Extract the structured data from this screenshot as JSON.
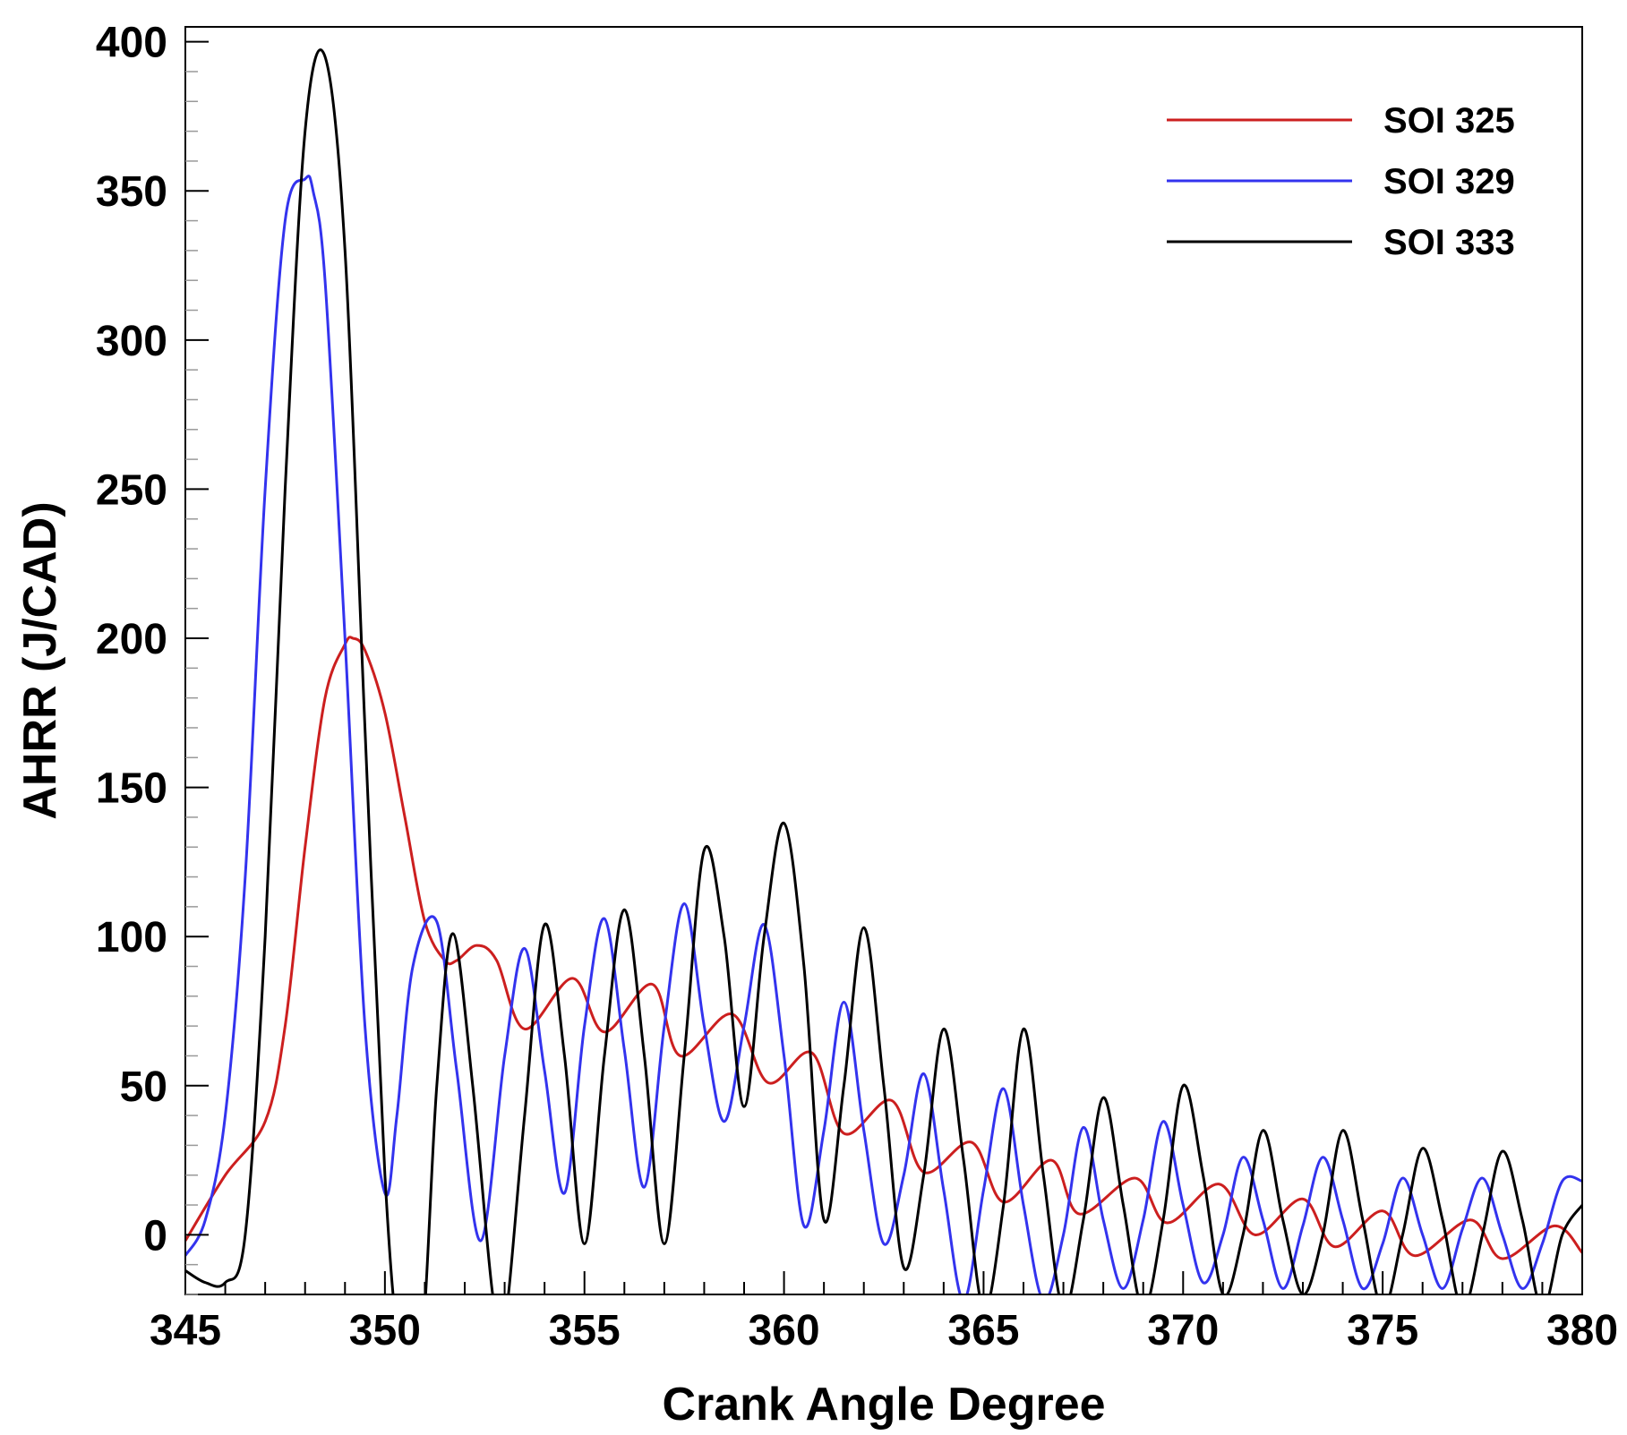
{
  "chart_data": {
    "type": "line",
    "xlabel": "Crank Angle Degree",
    "ylabel": "AHRR (J/CAD)",
    "xlim": [
      345,
      380
    ],
    "ylim": [
      -20,
      405
    ],
    "xticks": [
      345,
      350,
      355,
      360,
      365,
      370,
      375,
      380
    ],
    "yticks": [
      0,
      50,
      100,
      150,
      200,
      250,
      300,
      350,
      400
    ],
    "grid": false,
    "legend_position": "top-right",
    "series": [
      {
        "name": "SOI 325",
        "color": "#cc1f1f",
        "x": [
          345,
          346,
          347,
          347.5,
          348,
          348.5,
          349,
          349.2,
          349.5,
          350,
          350.5,
          351,
          351.5,
          351.8,
          352.3,
          352.8,
          353.5,
          354.7,
          355.5,
          356.7,
          357.4,
          358.7,
          359.6,
          360.7,
          361.5,
          362.7,
          363.5,
          364.7,
          365.5,
          366.7,
          367.4,
          368.8,
          369.6,
          370.9,
          371.8,
          373.0,
          373.8,
          375.0,
          375.8,
          377.2,
          378.0,
          379.3,
          380
        ],
        "y": [
          -2,
          20,
          38,
          70,
          130,
          180,
          198,
          200,
          196,
          175,
          140,
          105,
          92,
          92,
          97,
          92,
          69,
          86,
          68,
          84,
          60,
          74,
          51,
          61,
          34,
          45,
          21,
          31,
          11,
          25,
          7,
          19,
          4,
          17,
          0,
          12,
          -4,
          8,
          -7,
          5,
          -8,
          3,
          -6
        ]
      },
      {
        "name": "SOI 329",
        "color": "#3333ee",
        "x": [
          345,
          345.5,
          346,
          346.5,
          347,
          347.5,
          348,
          348.2,
          348.5,
          349,
          349.5,
          350,
          350.3,
          350.7,
          351.3,
          351.8,
          352.4,
          353.0,
          353.5,
          354.0,
          354.5,
          355.0,
          355.5,
          356.0,
          356.5,
          357.0,
          357.5,
          358.0,
          358.5,
          359.0,
          359.5,
          360.0,
          360.5,
          361.0,
          361.5,
          362.0,
          362.5,
          363.0,
          363.5,
          364.0,
          364.5,
          365.0,
          365.5,
          366.0,
          366.5,
          367.0,
          367.5,
          368.0,
          368.5,
          369.0,
          369.5,
          370.0,
          370.5,
          371.0,
          371.5,
          372.0,
          372.5,
          373.0,
          373.5,
          374.0,
          374.5,
          375.0,
          375.5,
          376.0,
          376.5,
          377.0,
          377.5,
          378.0,
          378.5,
          379.0,
          379.5,
          380
        ],
        "y": [
          -7,
          5,
          40,
          120,
          250,
          340,
          354,
          350,
          320,
          200,
          70,
          14,
          40,
          90,
          105,
          55,
          -2,
          60,
          96,
          55,
          14,
          70,
          106,
          62,
          16,
          70,
          111,
          70,
          38,
          70,
          104,
          60,
          3,
          35,
          78,
          35,
          -3,
          20,
          54,
          15,
          -22,
          15,
          49,
          10,
          -22,
          0,
          36,
          5,
          -18,
          5,
          38,
          10,
          -16,
          0,
          26,
          5,
          -18,
          3,
          26,
          5,
          -18,
          -3,
          19,
          0,
          -18,
          2,
          19,
          0,
          -18,
          -3,
          18,
          18
        ]
      },
      {
        "name": "SOI 333",
        "color": "#000000",
        "x": [
          345,
          345.5,
          346,
          346.5,
          347,
          347.5,
          348,
          348.5,
          349,
          349.5,
          350,
          350.4,
          350.9,
          351.3,
          351.7,
          352.2,
          352.7,
          353.0,
          353.5,
          354.0,
          354.5,
          355.0,
          355.5,
          356.0,
          356.5,
          357.0,
          357.5,
          358.0,
          358.5,
          359.0,
          359.5,
          360.0,
          360.5,
          361.0,
          361.5,
          362.0,
          362.5,
          363.0,
          363.5,
          364.0,
          364.5,
          365.0,
          365.5,
          366.0,
          366.5,
          367.0,
          367.5,
          368.0,
          368.5,
          369.0,
          369.5,
          370.0,
          370.5,
          371.0,
          371.5,
          372.0,
          372.5,
          373.0,
          373.5,
          374.0,
          374.5,
          375.0,
          375.5,
          376.0,
          376.5,
          377.0,
          377.5,
          378.0,
          378.5,
          379.0,
          379.5,
          380
        ],
        "y": [
          -12,
          -16,
          -16,
          0,
          100,
          250,
          370,
          395,
          330,
          170,
          20,
          -40,
          -40,
          50,
          101,
          50,
          -20,
          -30,
          40,
          104,
          60,
          -3,
          60,
          109,
          60,
          -3,
          60,
          129,
          100,
          43,
          100,
          138,
          90,
          5,
          50,
          103,
          50,
          -11,
          20,
          69,
          25,
          -25,
          10,
          69,
          20,
          -25,
          5,
          46,
          10,
          -25,
          5,
          50,
          20,
          -20,
          0,
          35,
          5,
          -20,
          0,
          35,
          5,
          -25,
          0,
          29,
          5,
          -25,
          0,
          28,
          5,
          -25,
          0,
          10
        ]
      }
    ]
  }
}
